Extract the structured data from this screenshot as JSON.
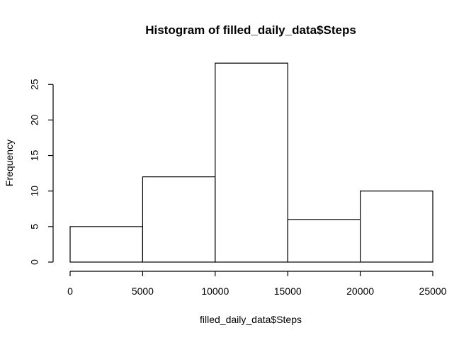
{
  "chart_data": {
    "type": "bar",
    "subtype": "histogram",
    "title": "Histogram of filled_daily_data$Steps",
    "xlabel": "filled_daily_data$Steps",
    "ylabel": "Frequency",
    "bins": [
      {
        "from": 0,
        "to": 5000,
        "value": 5
      },
      {
        "from": 5000,
        "to": 10000,
        "value": 12
      },
      {
        "from": 10000,
        "to": 15000,
        "value": 28
      },
      {
        "from": 15000,
        "to": 20000,
        "value": 6
      },
      {
        "from": 20000,
        "to": 25000,
        "value": 10
      }
    ],
    "x_ticks": [
      "0",
      "5000",
      "10000",
      "15000",
      "20000",
      "25000"
    ],
    "y_ticks": [
      "0",
      "5",
      "10",
      "15",
      "20",
      "25"
    ],
    "xlim": [
      0,
      25000
    ],
    "ylim": [
      0,
      28
    ],
    "grid": false,
    "legend": "none",
    "colors": {
      "bar_fill": "#ffffff",
      "bar_stroke": "#000000"
    }
  }
}
